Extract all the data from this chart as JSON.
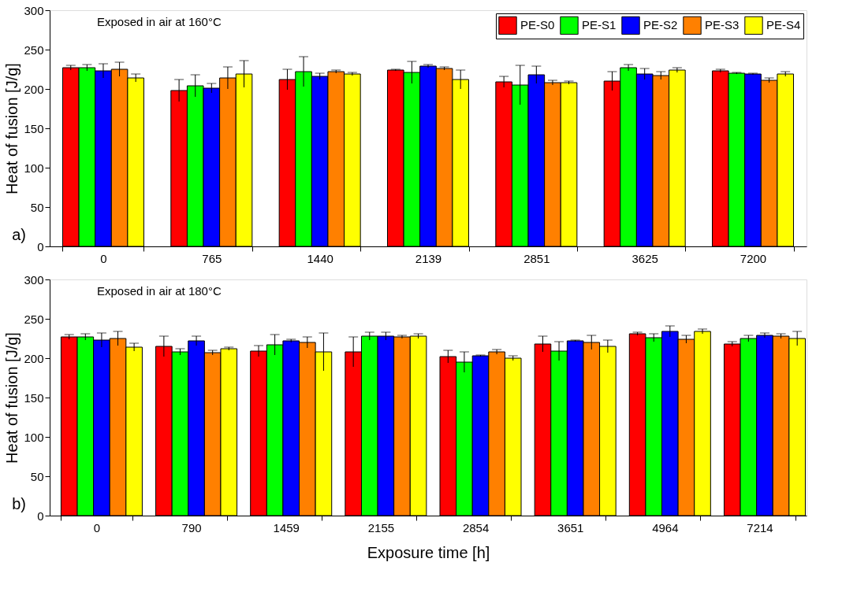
{
  "chart_data": [
    {
      "type": "bar",
      "categories": [
        "0",
        "765",
        "1440",
        "2139",
        "2851",
        "3625",
        "7200"
      ],
      "ylabel": "Heat of fusion [J/g]",
      "ylim": [
        0,
        300
      ],
      "yticks": [
        0,
        50,
        100,
        150,
        200,
        250,
        300
      ],
      "grid": false,
      "legend": "top right",
      "annotations": [
        "Exposed in air at 160°C",
        "a)"
      ],
      "series": [
        {
          "name": "PE-S0",
          "color": "#ff0000",
          "values": [
            227,
            198,
            212,
            224,
            209,
            210,
            223
          ],
          "errors": [
            3,
            14,
            13,
            1,
            7,
            12,
            2
          ]
        },
        {
          "name": "PE-S1",
          "color": "#00ff00",
          "values": [
            227,
            204,
            222,
            221,
            205,
            227,
            220
          ],
          "errors": [
            4,
            14,
            19,
            14,
            25,
            4,
            1
          ]
        },
        {
          "name": "PE-S2",
          "color": "#0000ff",
          "values": [
            223,
            201,
            216,
            229,
            218,
            219,
            219
          ],
          "errors": [
            9,
            6,
            4,
            2,
            11,
            7,
            1
          ]
        },
        {
          "name": "PE-S3",
          "color": "#ff8000",
          "values": [
            225,
            214,
            222,
            226,
            208,
            217,
            211
          ],
          "errors": [
            9,
            14,
            2,
            2,
            3,
            5,
            3
          ]
        },
        {
          "name": "PE-S4",
          "color": "#ffff00",
          "values": [
            214,
            219,
            219,
            212,
            208,
            224,
            219
          ],
          "errors": [
            5,
            17,
            2,
            12,
            2,
            3,
            3
          ]
        }
      ]
    },
    {
      "type": "bar",
      "categories": [
        "0",
        "790",
        "1459",
        "2155",
        "2854",
        "3651",
        "4964",
        "7214"
      ],
      "ylabel": "Heat of fusion [J/g]",
      "xlabel": "Exposure time [h]",
      "ylim": [
        0,
        300
      ],
      "yticks": [
        0,
        50,
        100,
        150,
        200,
        250,
        300
      ],
      "grid": false,
      "annotations": [
        "Exposed in air at 180°C",
        "b)"
      ],
      "series": [
        {
          "color": "#ff0000",
          "values": [
            227,
            215,
            209,
            208,
            202,
            218,
            231,
            218
          ],
          "errors": [
            3,
            13,
            7,
            19,
            8,
            10,
            2,
            3
          ]
        },
        {
          "color": "#00ff00",
          "values": [
            227,
            208,
            217,
            228,
            195,
            209,
            226,
            225
          ],
          "errors": [
            4,
            4,
            13,
            5,
            13,
            12,
            5,
            4
          ]
        },
        {
          "color": "#0000ff",
          "values": [
            223,
            222,
            222,
            228,
            203,
            222,
            234,
            229
          ],
          "errors": [
            9,
            6,
            2,
            5,
            1,
            1,
            7,
            3
          ]
        },
        {
          "color": "#ff8000",
          "values": [
            225,
            207,
            220,
            227,
            208,
            220,
            224,
            228
          ],
          "errors": [
            9,
            3,
            7,
            2,
            3,
            9,
            5,
            3
          ]
        },
        {
          "color": "#ffff00",
          "values": [
            214,
            212,
            208,
            228,
            200,
            215,
            234,
            225
          ],
          "errors": [
            5,
            2,
            24,
            3,
            3,
            8,
            3,
            9
          ]
        }
      ]
    }
  ]
}
